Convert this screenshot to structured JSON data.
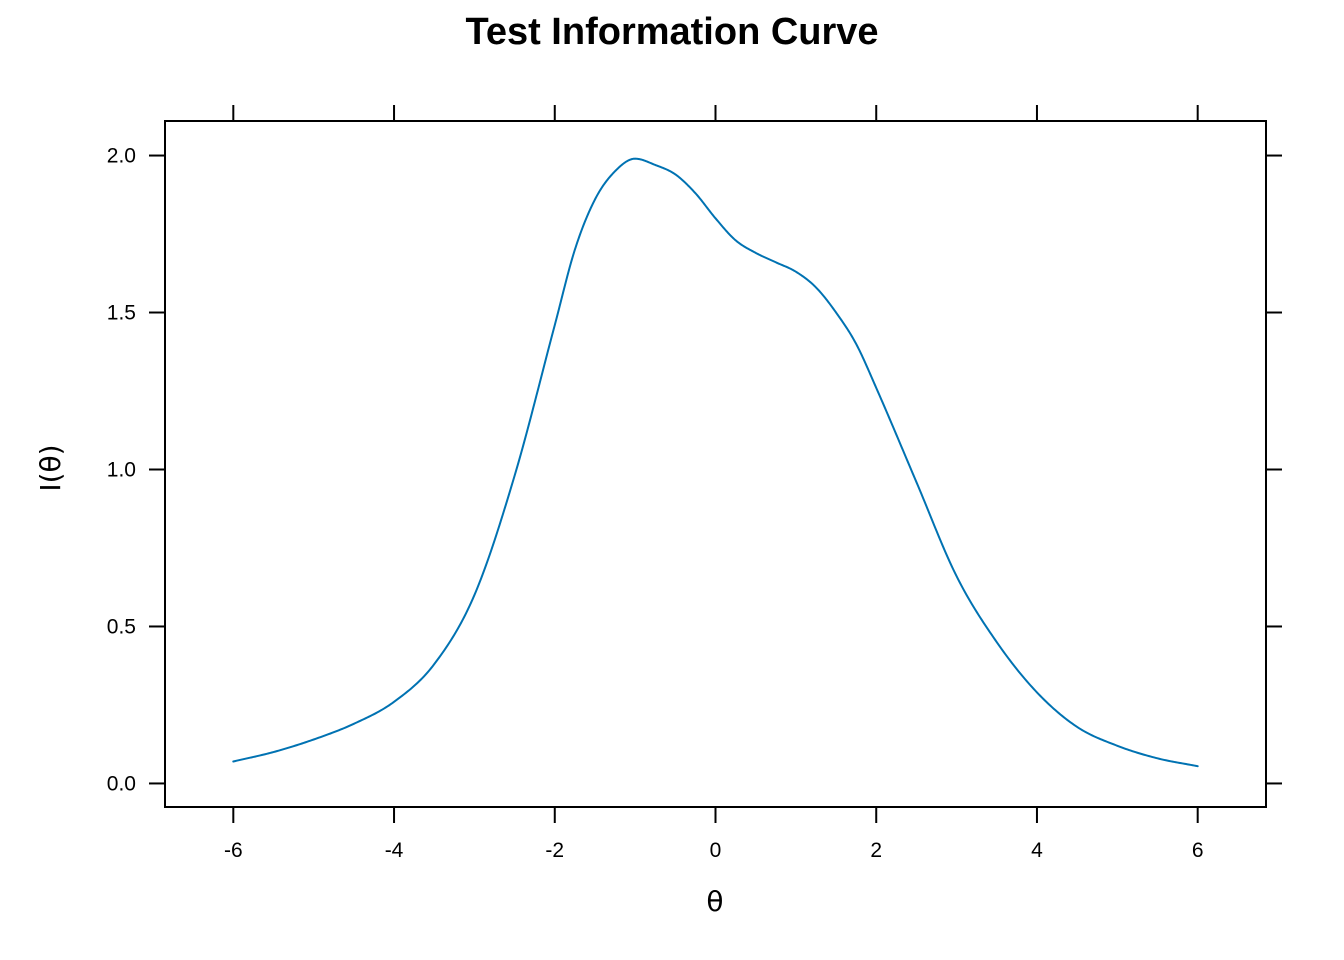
{
  "chart_data": {
    "type": "line",
    "title": "Test Information Curve",
    "xlabel": "θ",
    "ylabel": "I(θ)",
    "xlim": [
      -6.85,
      6.85
    ],
    "ylim": [
      -0.075,
      2.11
    ],
    "xticks": [
      -6,
      -4,
      -2,
      0,
      2,
      4,
      6
    ],
    "xtick_labels": [
      "-6",
      "-4",
      "-2",
      "0",
      "2",
      "4",
      "6"
    ],
    "yticks": [
      0.0,
      0.5,
      1.0,
      1.5,
      2.0
    ],
    "ytick_labels": [
      "0.0",
      "0.5",
      "1.0",
      "1.5",
      "2.0"
    ],
    "grid": false,
    "line_color": "#0072B2",
    "series": [
      {
        "x": [
          -6.0,
          -5.5,
          -5.0,
          -4.5,
          -4.0,
          -3.5,
          -3.0,
          -2.5,
          -2.0,
          -1.75,
          -1.5,
          -1.25,
          -1.0,
          -0.75,
          -0.5,
          -0.25,
          0.0,
          0.25,
          0.5,
          0.75,
          1.0,
          1.25,
          1.5,
          1.75,
          2.0,
          2.5,
          3.0,
          3.5,
          4.0,
          4.5,
          5.0,
          5.5,
          6.0
        ],
        "y": [
          0.07,
          0.1,
          0.14,
          0.19,
          0.26,
          0.38,
          0.6,
          0.98,
          1.46,
          1.7,
          1.86,
          1.95,
          1.99,
          1.97,
          1.94,
          1.88,
          1.8,
          1.73,
          1.69,
          1.66,
          1.63,
          1.58,
          1.5,
          1.4,
          1.26,
          0.96,
          0.66,
          0.45,
          0.29,
          0.18,
          0.12,
          0.08,
          0.055
        ]
      }
    ]
  }
}
